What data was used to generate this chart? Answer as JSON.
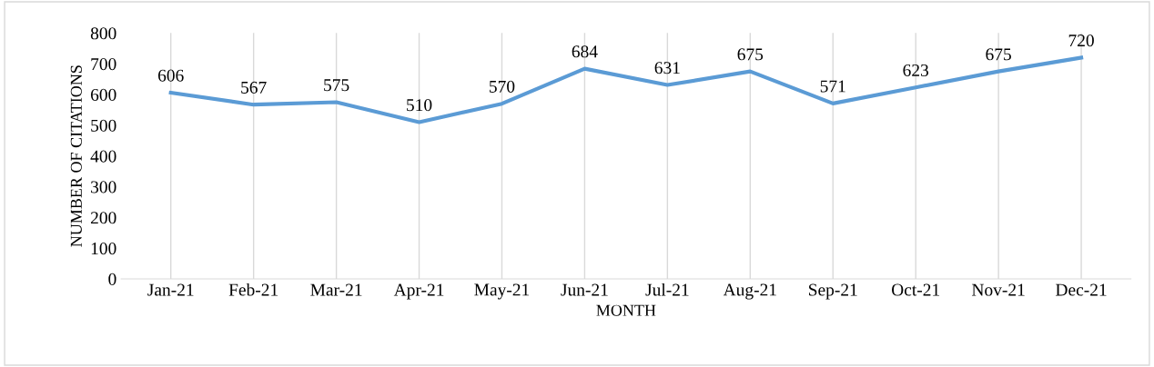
{
  "chart_data": {
    "type": "line",
    "xlabel": "MONTH",
    "ylabel": "NUMBER OF CITATIONS",
    "categories": [
      "Jan-21",
      "Feb-21",
      "Mar-21",
      "Apr-21",
      "May-21",
      "Jun-21",
      "Jul-21",
      "Aug-21",
      "Sep-21",
      "Oct-21",
      "Nov-21",
      "Dec-21"
    ],
    "series": [
      {
        "color": "#5b9bd5",
        "values": [
          606,
          567,
          575,
          510,
          570,
          684,
          631,
          675,
          571,
          623,
          675,
          720
        ]
      }
    ],
    "ylim": [
      0,
      800
    ],
    "yticks": [
      0,
      100,
      200,
      300,
      400,
      500,
      600,
      700,
      800
    ],
    "grid": "x",
    "data_labels": true,
    "legend": false,
    "marker": "none",
    "line_style": "solid"
  }
}
